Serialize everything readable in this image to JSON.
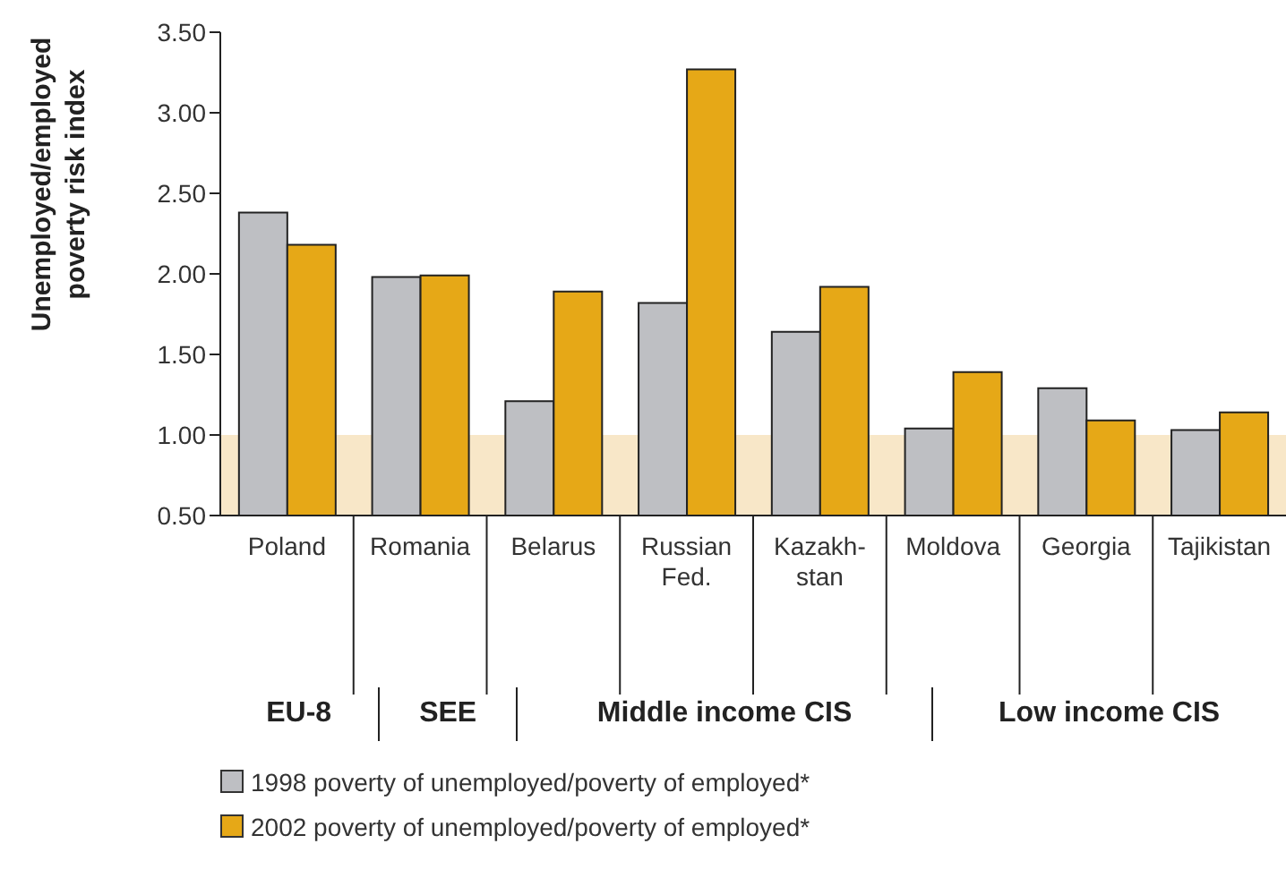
{
  "chart_data": {
    "type": "bar",
    "ylabel": "Unemployed/employed poverty risk index",
    "categories": [
      "Poland",
      "Romania",
      "Belarus",
      "Russian\nFed.",
      "Kazakh-\nstan",
      "Moldova",
      "Georgia",
      "Tajikistan"
    ],
    "series": [
      {
        "name": "1998 poverty of unemployed/poverty of employed*",
        "color": "#bebfc3",
        "values": [
          2.38,
          1.98,
          1.21,
          1.82,
          1.64,
          1.04,
          1.29,
          1.03
        ]
      },
      {
        "name": "2002 poverty of unemployed/poverty of employed*",
        "color": "#e6a817",
        "values": [
          2.18,
          1.99,
          1.89,
          3.27,
          1.92,
          1.39,
          1.09,
          1.14
        ]
      }
    ],
    "ylim": [
      0.5,
      3.5
    ],
    "yticks": [
      {
        "value": 0.5,
        "label": "0.50"
      },
      {
        "value": 1,
        "label": "1.00"
      },
      {
        "value": 1.5,
        "label": "1.50"
      },
      {
        "value": 2,
        "label": "2.00"
      },
      {
        "value": 2.5,
        "label": "2.50"
      },
      {
        "value": 3,
        "label": "3.00"
      },
      {
        "value": 3.5,
        "label": "3.50"
      }
    ],
    "bands": [
      {
        "axis": "y",
        "from": 0.5,
        "to": 1,
        "color": "#f8e7c8"
      }
    ],
    "annotations": [
      "EU-8",
      "SEE",
      "Middle income CIS",
      "Low income CIS"
    ],
    "grid": false,
    "legend": "bottom"
  }
}
